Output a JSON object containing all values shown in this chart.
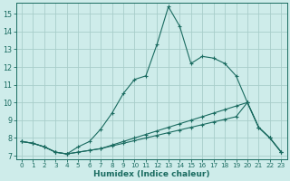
{
  "xlabel": "Humidex (Indice chaleur)",
  "background_color": "#ceecea",
  "grid_color": "#a8ceca",
  "line_color": "#1a6b60",
  "xlim": [
    -0.5,
    23.5
  ],
  "ylim": [
    6.8,
    15.6
  ],
  "yticks": [
    7,
    8,
    9,
    10,
    11,
    12,
    13,
    14,
    15
  ],
  "xticks": [
    0,
    1,
    2,
    3,
    4,
    5,
    6,
    7,
    8,
    9,
    10,
    11,
    12,
    13,
    14,
    15,
    16,
    17,
    18,
    19,
    20,
    21,
    22,
    23
  ],
  "curve1_x": [
    0,
    1,
    2,
    3,
    4,
    5,
    6,
    7,
    8,
    9,
    10,
    11,
    12,
    13,
    14,
    15,
    16,
    17,
    18,
    19,
    20,
    21,
    22,
    23
  ],
  "curve1_y": [
    7.8,
    7.7,
    7.5,
    7.2,
    7.1,
    7.5,
    7.8,
    8.5,
    9.4,
    10.5,
    11.3,
    11.5,
    13.3,
    15.4,
    14.3,
    12.2,
    12.6,
    12.5,
    12.2,
    11.5,
    10.0,
    8.6,
    8.0,
    7.2
  ],
  "curve2_x": [
    0,
    1,
    2,
    3,
    4,
    5,
    6,
    7,
    8,
    9,
    10,
    11,
    12,
    13,
    14,
    15,
    16,
    17,
    18,
    19,
    20,
    21,
    22,
    23
  ],
  "curve2_y": [
    7.8,
    7.7,
    7.5,
    7.2,
    7.1,
    7.2,
    7.3,
    7.4,
    7.55,
    7.7,
    7.85,
    8.0,
    8.15,
    8.3,
    8.45,
    8.6,
    8.75,
    8.9,
    9.05,
    9.2,
    10.0,
    8.6,
    8.0,
    7.2
  ],
  "curve3_x": [
    0,
    1,
    2,
    3,
    4,
    5,
    6,
    7,
    8,
    9,
    10,
    11,
    12,
    13,
    14,
    15,
    16,
    17,
    18,
    19,
    20,
    21,
    22,
    23
  ],
  "curve3_y": [
    7.8,
    7.7,
    7.5,
    7.2,
    7.1,
    7.2,
    7.3,
    7.4,
    7.6,
    7.8,
    8.0,
    8.2,
    8.4,
    8.6,
    8.8,
    9.0,
    9.2,
    9.4,
    9.6,
    9.8,
    10.0,
    8.6,
    8.0,
    7.2
  ]
}
